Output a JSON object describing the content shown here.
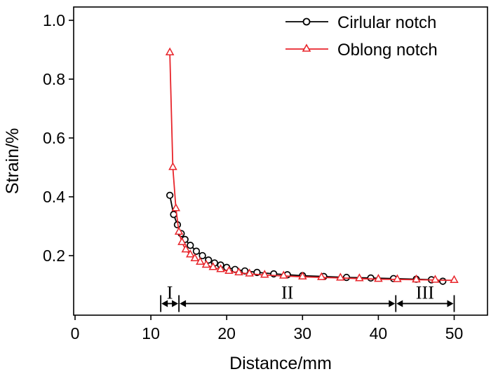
{
  "chart_data": {
    "type": "line",
    "xlabel": "Distance/mm",
    "ylabel": "Strain/%",
    "xlim": [
      0,
      52
    ],
    "ylim": [
      0.0,
      1.05
    ],
    "xticks": [
      0,
      10,
      20,
      30,
      40,
      50
    ],
    "yticks": [
      0.2,
      0.4,
      0.6,
      0.8,
      1.0
    ],
    "xtick_labels": [
      "0",
      "10",
      "20",
      "30",
      "40",
      "50"
    ],
    "ytick_labels": [
      "0.2",
      "0.4",
      "0.6",
      "0.8",
      "1.0"
    ],
    "legend_position": "top-right",
    "series": [
      {
        "name": "Cirlular notch",
        "color": "#000000",
        "marker": "circle",
        "x": [
          12.5,
          13.0,
          13.5,
          14.0,
          14.5,
          15.2,
          16.0,
          16.8,
          17.6,
          18.4,
          19.2,
          20.0,
          21.1,
          22.4,
          24.0,
          26.2,
          28.0,
          30.0,
          32.8,
          35.8,
          39.0,
          42.0,
          45.0,
          47.0,
          48.5
        ],
        "y": [
          0.405,
          0.34,
          0.305,
          0.275,
          0.255,
          0.235,
          0.215,
          0.2,
          0.185,
          0.175,
          0.168,
          0.16,
          0.153,
          0.148,
          0.143,
          0.138,
          0.135,
          0.132,
          0.129,
          0.126,
          0.124,
          0.122,
          0.12,
          0.118,
          0.113
        ]
      },
      {
        "name": "Oblong notch",
        "color": "#e8252b",
        "marker": "triangle",
        "x": [
          12.5,
          12.9,
          13.3,
          13.7,
          14.1,
          14.6,
          15.2,
          15.8,
          16.5,
          17.3,
          18.2,
          19.2,
          20.3,
          21.6,
          23.0,
          25.0,
          27.5,
          30.0,
          32.5,
          35.0,
          37.5,
          40.0,
          42.5,
          45.0,
          47.5,
          50.0
        ],
        "y": [
          0.89,
          0.5,
          0.36,
          0.28,
          0.245,
          0.22,
          0.203,
          0.19,
          0.178,
          0.168,
          0.16,
          0.153,
          0.147,
          0.142,
          0.138,
          0.134,
          0.131,
          0.128,
          0.126,
          0.124,
          0.122,
          0.12,
          0.119,
          0.118,
          0.117,
          0.116
        ]
      }
    ],
    "regions": [
      {
        "label": "I",
        "x_start": 11.3,
        "x_end": 13.7
      },
      {
        "label": "II",
        "x_start": 13.7,
        "x_end": 42.3
      },
      {
        "label": "III",
        "x_start": 42.3,
        "x_end": 50.0
      }
    ],
    "region_arrow_y": 0.037
  }
}
